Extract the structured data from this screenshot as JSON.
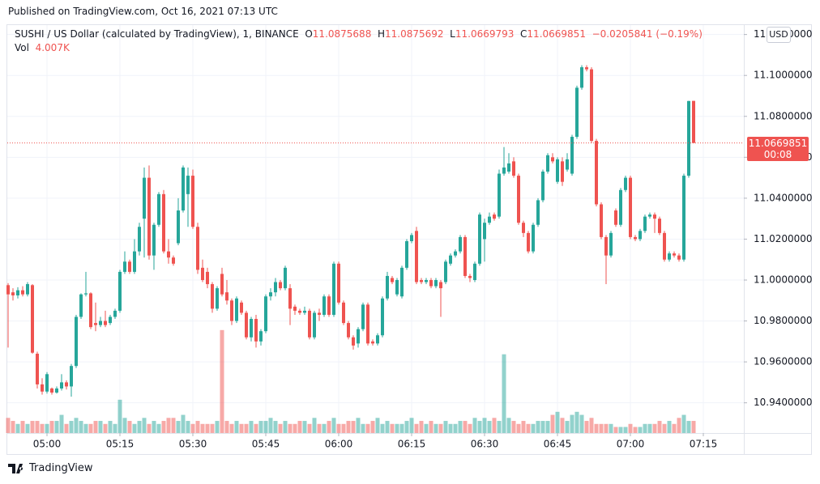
{
  "header": {
    "published": "Published on TradingView.com, Oct 16, 2021 07:13 UTC"
  },
  "footer": {
    "brand": "TradingView"
  },
  "chart_data": {
    "type": "candlestick",
    "symbol": "SUSHI / US Dollar (calculated by TradingView), 1, BINANCE",
    "legend_labels": {
      "open": "O",
      "high": "H",
      "low": "L",
      "close": "C",
      "volume": "Vol"
    },
    "change": "−0.0205841 (−0.19%)",
    "volume_label": "4.007K",
    "currency": "USD",
    "countdown": "00:08",
    "up_color": "#26a69a",
    "down_color": "#ef5350",
    "grid": true,
    "x": [
      292,
      293,
      294,
      295,
      296,
      297,
      298,
      299,
      300,
      301,
      302,
      303,
      304,
      305,
      306,
      307,
      308,
      309,
      310,
      311,
      312,
      313,
      314,
      315,
      316,
      317,
      318,
      319,
      320,
      321,
      322,
      323,
      324,
      325,
      326,
      327,
      328,
      329,
      330,
      331,
      332,
      333,
      334,
      335,
      336,
      337,
      338,
      339,
      340,
      341,
      342,
      343,
      344,
      345,
      346,
      347,
      348,
      349,
      350,
      351,
      352,
      353,
      354,
      355,
      356,
      357,
      358,
      359,
      360,
      361,
      362,
      363,
      364,
      365,
      366,
      367,
      368,
      369,
      370,
      371,
      372,
      373,
      374,
      375,
      376,
      377,
      378,
      379,
      380,
      381,
      382,
      383,
      384,
      385,
      386,
      387,
      388,
      389,
      390,
      391,
      392,
      393,
      394,
      395,
      396,
      397,
      398,
      399,
      400,
      401,
      402,
      403,
      404,
      405,
      406,
      407,
      408,
      409,
      410,
      411,
      412,
      413,
      414,
      415,
      416,
      417,
      418,
      419,
      420,
      421,
      422,
      423,
      424,
      425,
      426,
      427,
      428,
      429,
      430,
      431,
      432,
      433
    ],
    "open": [
      10.9975,
      10.994,
      10.9925,
      10.995,
      10.993,
      10.9975,
      10.964,
      10.949,
      10.9455,
      10.947,
      10.945,
      10.947,
      10.95,
      10.948,
      10.958,
      10.982,
      10.993,
      10.9935,
      10.979,
      10.978,
      10.98,
      10.979,
      10.982,
      10.985,
      11.004,
      11.009,
      11.004,
      11.014,
      11.03,
      11.05,
      11.012,
      11.027,
      11.042,
      11.014,
      11.011,
      11.018,
      11.034,
      11.042,
      11.051,
      11.026,
      11.006,
      11.004,
      10.998,
      10.986,
      11.003,
      10.994,
      10.99,
      10.98,
      10.989,
      10.984,
      10.972,
      10.981,
      10.97,
      10.975,
      10.992,
      10.994,
      10.999,
      10.996,
      10.996,
      10.987,
      10.985,
      10.984,
      10.985,
      10.972,
      10.984,
      10.983,
      10.992,
      10.983,
      11.008,
      10.989,
      10.979,
      10.972,
      10.969,
      10.976,
      10.988,
      10.97,
      10.969,
      10.973,
      10.991,
      11.001,
      10.993,
      10.992,
      11.006,
      11.019,
      11.024,
      11.0,
      10.999,
      11.0,
      10.997,
      10.999,
      10.999,
      11.008,
      11.012,
      11.014,
      11.021,
      11.002,
      11.0,
      11.008,
      11.02,
      11.028,
      11.032,
      11.031,
      11.052,
      11.053,
      11.058,
      11.051,
      11.028,
      11.023,
      11.014,
      11.027,
      11.039,
      11.053,
      11.06,
      11.048,
      11.058,
      11.054,
      11.052,
      11.07,
      11.094,
      11.104,
      11.103,
      11.068,
      11.037,
      11.021,
      11.012,
      11.034,
      11.027,
      11.044,
      11.05,
      11.021,
      11.02,
      11.024,
      11.031,
      11.032,
      11.03,
      11.023,
      11.01,
      11.013,
      11.012,
      11.01,
      11.051,
      11.0875688
    ],
    "high": [
      10.9985,
      10.996,
      10.9965,
      10.997,
      10.999,
      10.998,
      10.965,
      10.952,
      10.955,
      10.9475,
      10.948,
      10.954,
      10.951,
      10.959,
      10.983,
      10.9935,
      11.004,
      10.994,
      10.989,
      10.982,
      10.985,
      10.983,
      10.986,
      11.005,
      11.014,
      11.01,
      11.02,
      11.028,
      11.055,
      11.056,
      11.028,
      11.043,
      11.044,
      11.02,
      11.012,
      11.04,
      11.056,
      11.055,
      11.054,
      11.028,
      11.01,
      11.006,
      10.999,
      10.997,
      11.006,
      11.0,
      10.991,
      10.992,
      10.99,
      10.985,
      10.982,
      10.983,
      10.976,
      10.993,
      10.996,
      11.001,
      11.0,
      11.007,
      10.998,
      10.988,
      10.986,
      10.987,
      10.986,
      10.985,
      10.986,
      10.993,
      10.993,
      11.009,
      11.009,
      10.99,
      10.98,
      10.973,
      10.977,
      10.989,
      10.989,
      10.971,
      10.974,
      10.992,
      11.004,
      11.002,
      11.001,
      11.007,
      11.02,
      11.023,
      11.026,
      11.001,
      11.001,
      11.001,
      11.001,
      11.0,
      11.01,
      11.013,
      11.015,
      11.022,
      11.022,
      11.003,
      11.009,
      11.033,
      11.03,
      11.033,
      11.033,
      11.054,
      11.065,
      11.062,
      11.06,
      11.052,
      11.029,
      11.024,
      11.028,
      11.04,
      11.054,
      11.062,
      11.062,
      11.06,
      11.06,
      11.062,
      11.071,
      11.095,
      11.105,
      11.105,
      11.104,
      11.069,
      11.038,
      11.022,
      11.024,
      11.035,
      11.045,
      11.051,
      11.051,
      11.022,
      11.025,
      11.032,
      11.033,
      11.033,
      11.031,
      11.024,
      11.014,
      11.014,
      11.013,
      11.052,
      11.0876,
      11.0875692
    ],
    "low": [
      10.967,
      10.99,
      10.991,
      10.992,
      10.992,
      10.964,
      10.947,
      10.944,
      10.9445,
      10.944,
      10.9445,
      10.946,
      10.9465,
      10.943,
      10.957,
      10.981,
      10.992,
      10.976,
      10.975,
      10.977,
      10.977,
      10.978,
      10.981,
      10.984,
      11.003,
      11.003,
      11.003,
      11.012,
      11.011,
      11.01,
      11.005,
      11.026,
      11.013,
      11.008,
      11.007,
      11.017,
      11.033,
      11.026,
      11.025,
      11.003,
      10.999,
      10.996,
      10.984,
      10.985,
      10.992,
      10.988,
      10.978,
      10.979,
      10.983,
      10.971,
      10.97,
      10.967,
      10.968,
      10.974,
      10.99,
      10.992,
      10.995,
      10.995,
      10.978,
      10.983,
      10.983,
      10.983,
      10.971,
      10.971,
      10.98,
      10.982,
      10.982,
      10.982,
      10.988,
      10.978,
      10.971,
      10.966,
      10.967,
      10.975,
      10.968,
      10.968,
      10.968,
      10.972,
      10.99,
      10.998,
      10.992,
      10.991,
      11.005,
      11.018,
      10.998,
      10.998,
      10.998,
      10.996,
      10.996,
      10.982,
      10.998,
      11.007,
      11.011,
      11.013,
      11.001,
      10.999,
      10.999,
      11.007,
      11.009,
      11.027,
      11.029,
      11.03,
      11.051,
      11.052,
      11.05,
      11.027,
      11.021,
      11.013,
      11.013,
      11.026,
      11.038,
      11.052,
      11.057,
      11.047,
      11.046,
      11.053,
      11.051,
      11.069,
      11.093,
      11.102,
      11.067,
      11.036,
      11.02,
      10.998,
      11.011,
      11.026,
      11.026,
      11.043,
      11.02,
      11.019,
      11.019,
      11.023,
      11.03,
      11.023,
      11.022,
      11.009,
      11.009,
      11.011,
      11.009,
      11.009,
      11.05,
      11.0669793
    ],
    "close": [
      10.993,
      10.9925,
      10.995,
      10.993,
      10.998,
      10.9645,
      10.949,
      10.9455,
      10.954,
      10.945,
      10.947,
      10.95,
      10.948,
      10.958,
      10.982,
      10.993,
      10.9935,
      10.977,
      10.978,
      10.98,
      10.978,
      10.982,
      10.985,
      11.004,
      11.009,
      11.004,
      11.014,
      11.026,
      11.05,
      11.012,
      11.027,
      11.042,
      11.014,
      11.011,
      11.008,
      11.034,
      11.055,
      11.051,
      11.026,
      11.005,
      11.0,
      10.998,
      10.986,
      10.996,
      10.993,
      10.99,
      10.98,
      10.991,
      10.984,
      10.972,
      10.981,
      10.97,
      10.975,
      10.992,
      10.994,
      10.999,
      10.996,
      11.006,
      10.986,
      10.985,
      10.984,
      10.985,
      10.972,
      10.984,
      10.983,
      10.992,
      10.983,
      11.008,
      10.989,
      10.979,
      10.972,
      10.968,
      10.976,
      10.988,
      10.969,
      10.969,
      10.973,
      10.991,
      11.002,
      10.999,
      11.0,
      11.006,
      11.019,
      11.022,
      10.999,
      10.999,
      11.0,
      10.997,
      11.0,
      10.996,
      11.009,
      11.012,
      11.014,
      11.021,
      11.002,
      11.001,
      11.008,
      11.032,
      11.028,
      11.031,
      11.03,
      11.052,
      11.055,
      11.057,
      11.051,
      11.028,
      11.023,
      11.014,
      11.027,
      11.039,
      11.053,
      11.061,
      11.058,
      11.059,
      11.048,
      11.059,
      11.07,
      11.094,
      11.104,
      11.103,
      11.068,
      11.037,
      11.021,
      11.012,
      11.023,
      11.027,
      11.044,
      11.05,
      11.021,
      11.02,
      11.024,
      11.031,
      11.032,
      11.03,
      11.023,
      11.01,
      11.013,
      11.012,
      11.01,
      11.051,
      11.0875,
      11.0669851
    ],
    "volume": [
      5,
      4,
      3,
      4,
      3,
      4,
      4,
      3,
      3,
      4,
      4,
      6,
      3,
      4,
      5,
      4,
      3,
      3,
      4,
      4,
      3,
      4,
      3,
      11,
      5,
      4,
      3,
      4,
      5,
      3,
      4,
      3,
      4,
      5,
      5,
      4,
      6,
      4,
      3,
      4,
      3,
      3,
      3,
      4,
      34,
      4,
      3,
      4,
      3,
      3,
      4,
      3,
      4,
      4,
      5,
      4,
      3,
      4,
      3,
      3,
      4,
      4,
      3,
      5,
      3,
      3,
      4,
      5,
      3,
      3,
      4,
      4,
      5,
      3,
      3,
      4,
      5,
      3,
      4,
      3,
      3,
      3,
      4,
      5,
      3,
      4,
      3,
      4,
      3,
      3,
      4,
      3,
      3,
      4,
      4,
      3,
      5,
      4,
      5,
      4,
      5,
      4,
      26,
      5,
      4,
      3,
      4,
      3,
      3,
      4,
      4,
      4,
      6,
      7,
      5,
      4,
      6,
      7,
      6,
      4,
      5,
      3,
      3,
      3,
      3,
      2,
      2,
      2,
      3,
      2,
      2,
      3,
      3,
      3,
      4,
      3,
      4,
      3,
      5,
      6,
      4,
      4.007
    ],
    "xlim": [
      290.3333,
      443.3333
    ],
    "ylim": [
      10.92524,
      11.125
    ],
    "vlim": [
      0,
      135
    ],
    "xticks": [
      {
        "value": 300,
        "label": "05:00"
      },
      {
        "value": 315,
        "label": "05:15"
      },
      {
        "value": 330,
        "label": "05:30"
      },
      {
        "value": 345,
        "label": "05:45"
      },
      {
        "value": 360,
        "label": "06:00"
      },
      {
        "value": 375,
        "label": "06:15"
      },
      {
        "value": 390,
        "label": "06:30"
      },
      {
        "value": 405,
        "label": "06:45"
      },
      {
        "value": 420,
        "label": "07:00"
      },
      {
        "value": 435,
        "label": "07:15"
      }
    ],
    "yticks": [
      {
        "value": 10.94,
        "label": "10.9400000"
      },
      {
        "value": 10.96,
        "label": "10.9600000"
      },
      {
        "value": 10.98,
        "label": "10.9800000"
      },
      {
        "value": 11,
        "label": "11.0000000"
      },
      {
        "value": 11.02,
        "label": "11.0200000"
      },
      {
        "value": 11.04,
        "label": "11.0400000"
      },
      {
        "value": 11.06,
        "label": "11.0600000"
      },
      {
        "value": 11.08,
        "label": "11.0800000"
      },
      {
        "value": 11.1,
        "label": "11.1000000"
      },
      {
        "value": 11.12,
        "label": "11.1200000"
      }
    ]
  }
}
